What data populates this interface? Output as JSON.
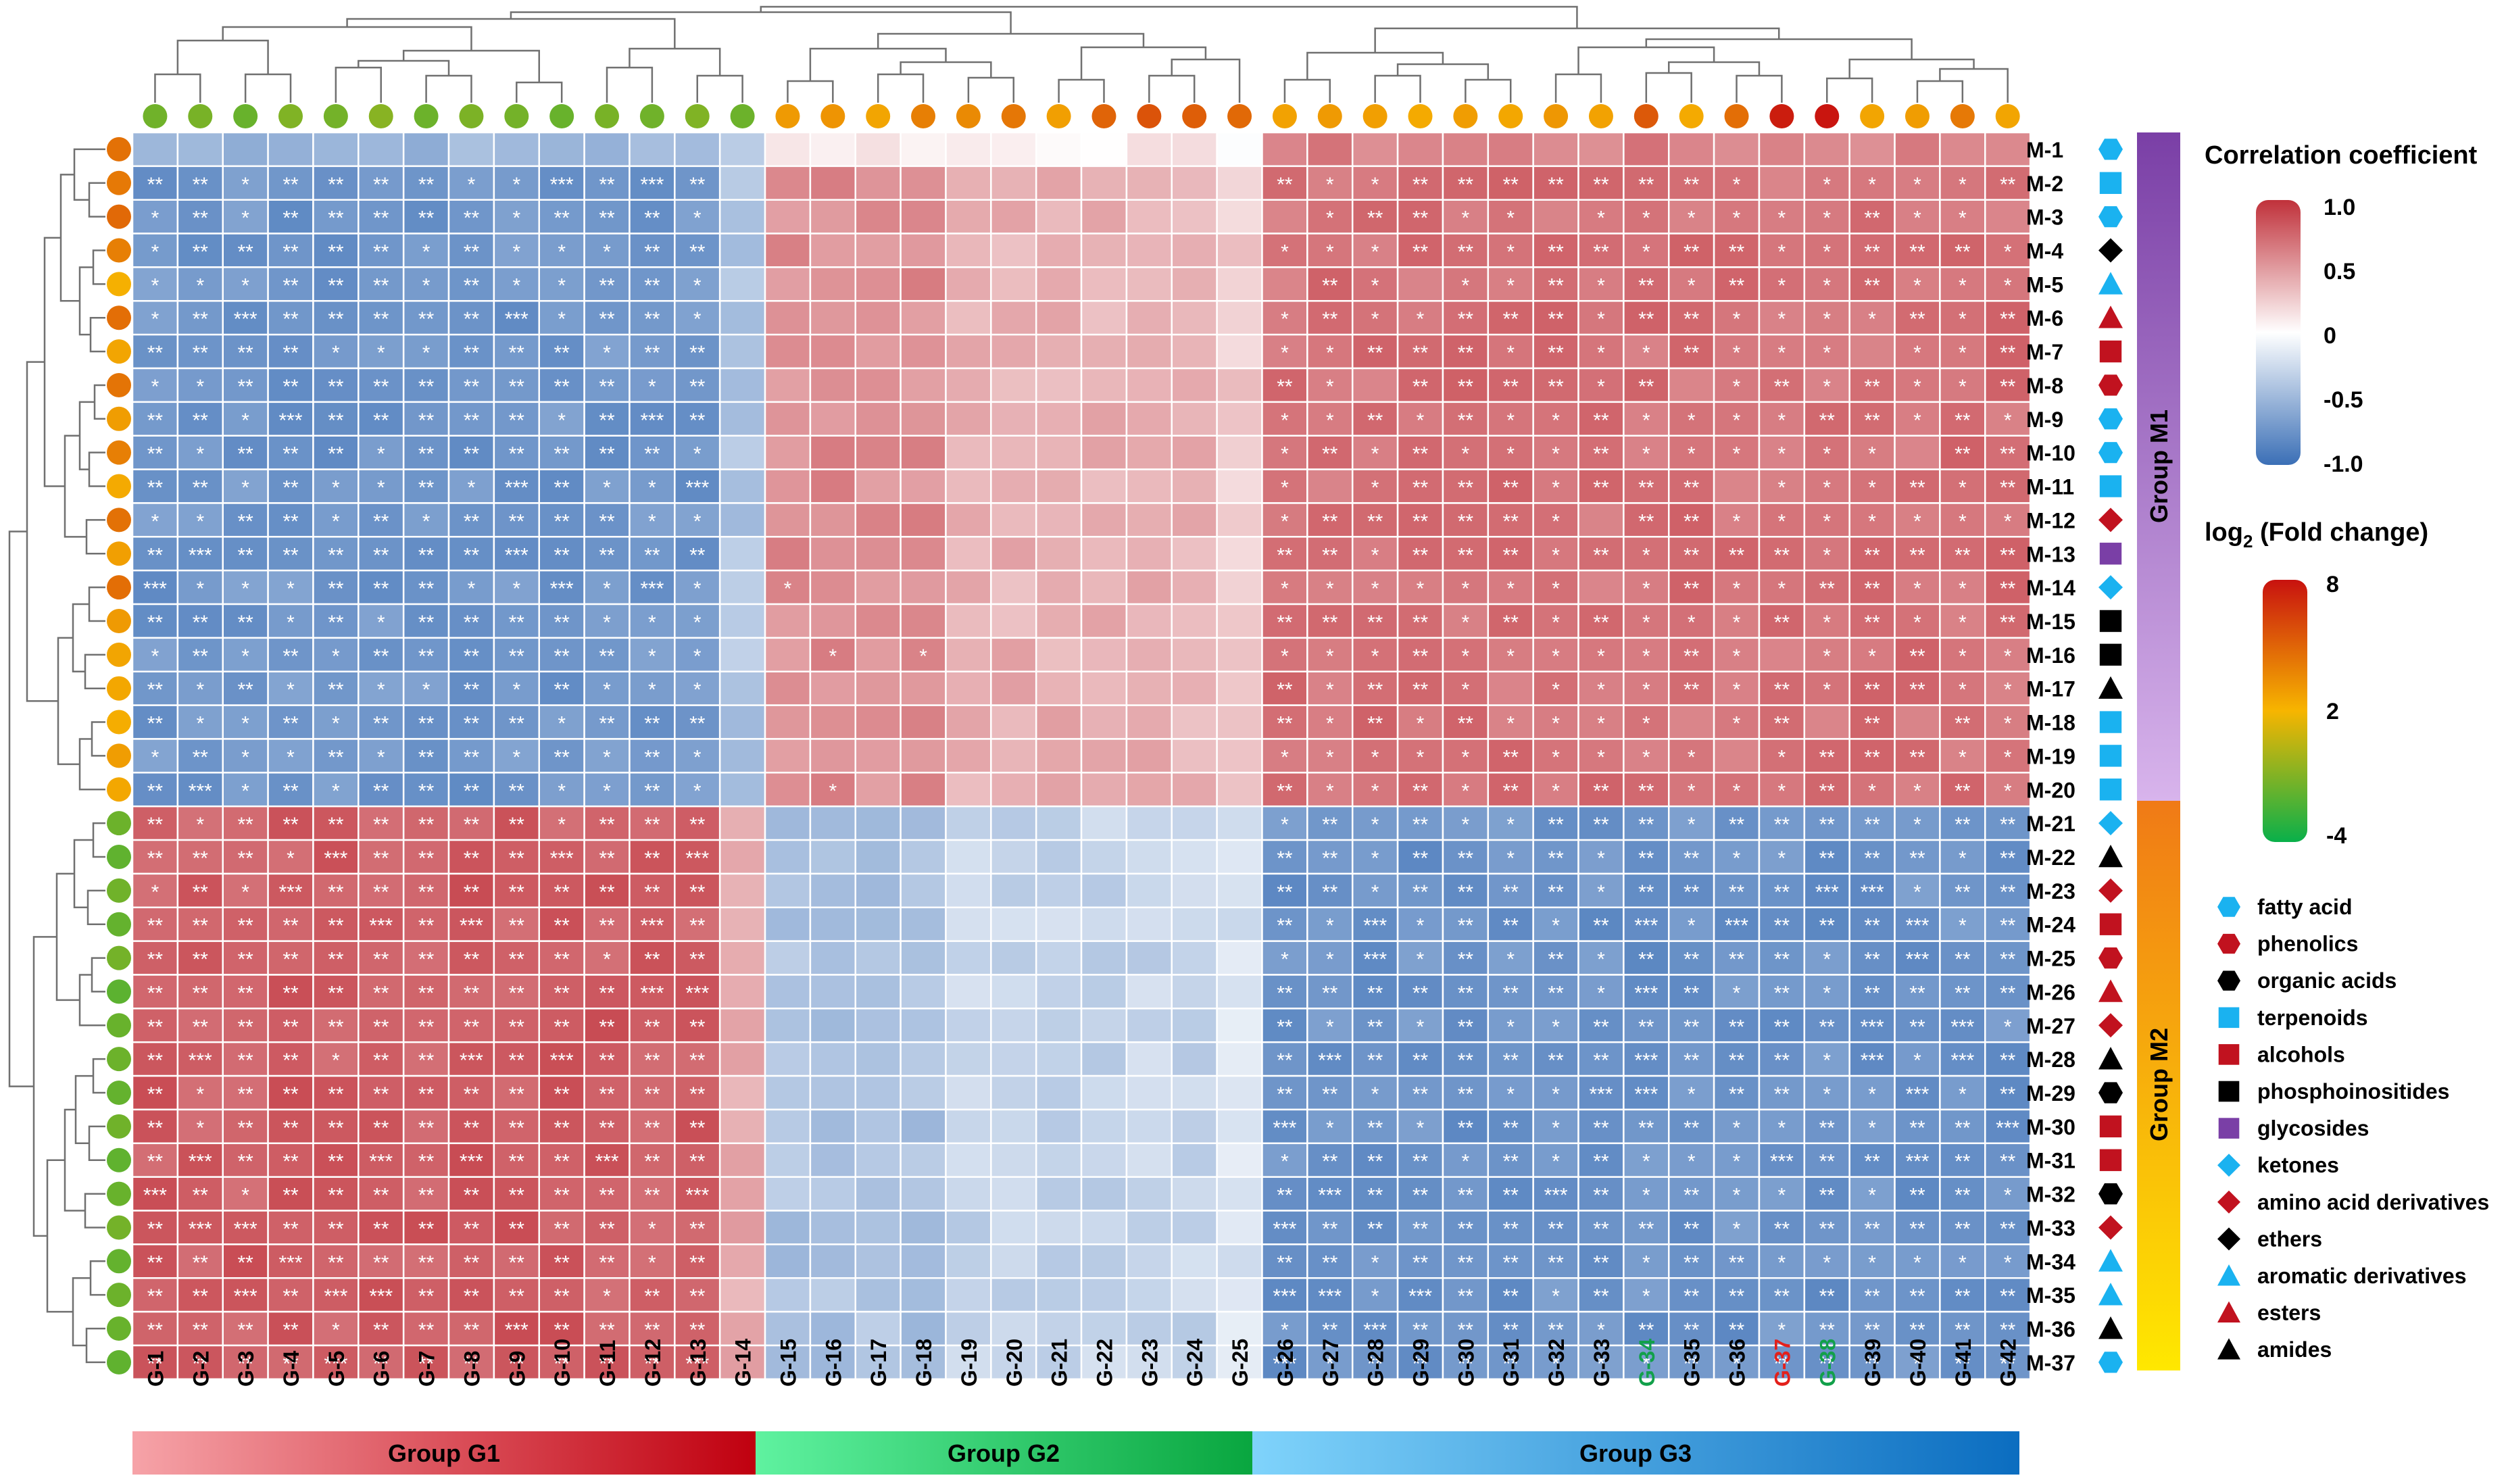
{
  "chart_data": {
    "type": "heatmap",
    "title": "",
    "xlabel": "",
    "ylabel": "",
    "columns": [
      "G-1",
      "G-2",
      "G-3",
      "G-4",
      "G-5",
      "G-6",
      "G-7",
      "G-8",
      "G-9",
      "G-10",
      "G-11",
      "G-12",
      "G-13",
      "G-14",
      "G-15",
      "G-16",
      "G-17",
      "G-18",
      "G-19",
      "G-20",
      "G-21",
      "G-22",
      "G-23",
      "G-24",
      "G-25",
      "G-26",
      "G-27",
      "G-28",
      "G-29",
      "G-30",
      "G-31",
      "G-32",
      "G-33",
      "G-34",
      "G-35",
      "G-36",
      "G-37",
      "G-38",
      "G-39",
      "G-40",
      "G-41",
      "G-42"
    ],
    "rows": [
      "M-1",
      "M-2",
      "M-3",
      "M-4",
      "M-5",
      "M-6",
      "M-7",
      "M-8",
      "M-9",
      "M-10",
      "M-11",
      "M-12",
      "M-13",
      "M-14",
      "M-15",
      "M-16",
      "M-17",
      "M-18",
      "M-19",
      "M-20",
      "M-21",
      "M-22",
      "M-23",
      "M-24",
      "M-25",
      "M-26",
      "M-27",
      "M-28",
      "M-29",
      "M-30",
      "M-31",
      "M-32",
      "M-33",
      "M-34",
      "M-35",
      "M-36",
      "M-37"
    ],
    "column_label_colors": {
      "G-34": "#12a04a",
      "G-37": "#e3201b",
      "G-38": "#12a04a"
    },
    "color_scale": {
      "min": -1.0,
      "max": 1.0,
      "low": "#3b6fb6",
      "mid": "#ffffff",
      "high": "#c0313a"
    },
    "col_group_bounds": [
      14,
      25
    ],
    "row_group_bound": 20,
    "gene_fold_change": [
      -1.4,
      -1.2,
      -1.6,
      -1.0,
      -1.3,
      -0.8,
      -1.5,
      -1.1,
      -1.3,
      -1.6,
      -1.2,
      -1.4,
      -1.0,
      -1.5,
      3.0,
      3.2,
      2.6,
      4.0,
      3.6,
      4.3,
      2.8,
      5.0,
      5.6,
      5.2,
      4.8,
      2.7,
      3.0,
      2.8,
      2.4,
      2.9,
      2.5,
      3.1,
      2.7,
      5.4,
      2.4,
      4.6,
      7.6,
      7.9,
      2.6,
      2.9,
      4.2,
      2.6
    ],
    "metabolite_fold_change": [
      4.5,
      4.2,
      4.8,
      4.0,
      2.2,
      4.6,
      2.6,
      4.4,
      2.9,
      4.0,
      2.4,
      4.5,
      2.8,
      4.6,
      3.0,
      2.6,
      2.5,
      2.3,
      2.9,
      2.5,
      -1.5,
      -1.8,
      -1.4,
      -1.7,
      -1.3,
      -1.9,
      -1.6,
      -1.5,
      -1.7,
      -1.4,
      -1.8,
      -1.6,
      -1.3,
      -1.7,
      -1.5,
      -1.6,
      -1.8
    ],
    "metabolite_classes": [
      "fatty acid",
      "terpenoids",
      "fatty acid",
      "ethers",
      "aromatic derivatives",
      "esters",
      "alcohols",
      "phenolics",
      "fatty acid",
      "fatty acid",
      "terpenoids",
      "amino acid derivatives",
      "glycosides",
      "ketones",
      "phosphoinositides",
      "phosphoinositides",
      "amides",
      "terpenoids",
      "terpenoids",
      "terpenoids",
      "ketones",
      "amides",
      "amino acid derivatives",
      "alcohols",
      "phenolics",
      "esters",
      "amino acid derivatives",
      "amides",
      "organic acids",
      "alcohols",
      "alcohols",
      "organic acids",
      "amino acid derivatives",
      "aromatic derivatives",
      "aromatic derivatives",
      "amides",
      "fatty acid"
    ],
    "significance": [
      "0000000000000000000000000020000000000002020003020022320202",
      "0202020202020200020202020000000000000000000202030202000202020202020202020202",
      "0202020203030303030302030302020000000000000000000000000000000002030302020203030303030302030302",
      "02020202030303030302030302000000000000000000000000000000020303030303020303030303020202",
      "020202030303040303030302020000000000000000000000000002020304030302020202020203020302",
      "020202030303030303030202020000000000000000000000000002030404030302020202020202030202",
      "02020203030303030302020202000000000000000000000000000203040303020202020202030403",
      "020202030303030303030202020000000000000000000000000002040403030202020303030304",
      "02020203030303030302030202000000000000000000000000000202030403030202020202030403",
      "0202020303030303030302030202000000000000000000000000000202030404030202020202030303",
      "020202030303030303030202030202000000000000000000000000020203040303020202020203030202",
      "0202030304040404030202030202000000000000000000000000000202030202030304030302030302040202",
      "020202030303030303040303030303000000000000000000000000000202020202020404040204040202040203",
      "0202020202020202020000030303030202000203030300000000000000030402030202030300000000000002",
      "02020202020202020200000303030302020002020200000000000000030402030202030300000000000202",
      "020202030303030302000002030302020200020202000000000000000304020302020303000000000202",
      "0202020303030303020000020302020200000000000000000000000003040203030303040000000002",
      "020203030303020202020000000000000000000002020202020202020203030202030302020202",
      "020203030302030202020000000000000000000002020202030303020202030302020202",
      "020203030202020302000000000000000000000002020302030303020202030202"
    ],
    "row_dot_colors": [
      "#e8841a",
      "#e8841a",
      "#e8841a",
      "#e8841a",
      "#f5b800",
      "#e8841a",
      "#f5b800",
      "#e8841a",
      "#f5b800",
      "#e8841a",
      "#f5b800",
      "#e8841a",
      "#f5b800",
      "#e8841a",
      "#f5b800",
      "#f5b800",
      "#f5b800",
      "#f5b800",
      "#f5b800",
      "#f5b800",
      "#8cc03a",
      "#8cc03a",
      "#5fb23a",
      "#8cc03a",
      "#8cc03a",
      "#5fb23a",
      "#8cc03a",
      "#5fb23a",
      "#8cc03a",
      "#5fb23a",
      "#8cc03a",
      "#5fb23a",
      "#8cc03a",
      "#8cc03a",
      "#8cc03a",
      "#5fb23a",
      "#8cc03a"
    ]
  },
  "legend": {
    "correlation_title": "Correlation coefficient",
    "correlation_ticks": [
      "1.0",
      "0.5",
      "0",
      "-0.5",
      "-1.0"
    ],
    "fold_title_prefix": "log",
    "fold_title_sub": "2",
    "fold_title_suffix": " (Fold change)",
    "fold_ticks": [
      "8",
      "2",
      "-4"
    ],
    "classes": [
      {
        "label": "fatty acid",
        "shape": "hexagon",
        "color": "#1ab2f0"
      },
      {
        "label": "phenolics",
        "shape": "hexagon",
        "color": "#c1121f"
      },
      {
        "label": "organic acids",
        "shape": "hexagon",
        "color": "#000000"
      },
      {
        "label": "terpenoids",
        "shape": "square",
        "color": "#1ab2f0"
      },
      {
        "label": "alcohols",
        "shape": "square",
        "color": "#c1121f"
      },
      {
        "label": "phosphoinositides",
        "shape": "square",
        "color": "#000000"
      },
      {
        "label": "glycosides",
        "shape": "square",
        "color": "#7a3fa6"
      },
      {
        "label": "ketones",
        "shape": "diamond",
        "color": "#1ab2f0"
      },
      {
        "label": "amino acid derivatives",
        "shape": "diamond",
        "color": "#c1121f"
      },
      {
        "label": "ethers",
        "shape": "diamond",
        "color": "#000000"
      },
      {
        "label": "aromatic derivatives",
        "shape": "triangle",
        "color": "#1ab2f0"
      },
      {
        "label": "esters",
        "shape": "triangle",
        "color": "#c1121f"
      },
      {
        "label": "amides",
        "shape": "triangle",
        "color": "#000000"
      }
    ]
  },
  "groups": {
    "columns": [
      {
        "label": "Group G1",
        "from": "#f6a3a8",
        "to": "#c0000f"
      },
      {
        "label": "Group G2",
        "from": "#5ff2a0",
        "to": "#09a63f"
      },
      {
        "label": "Group G3",
        "from": "#7fd3fb",
        "to": "#0b6dc0"
      }
    ],
    "rows": [
      {
        "label": "Group M1",
        "from": "#7a3fa6",
        "to": "#d8b4ec"
      },
      {
        "label": "Group M2",
        "from": "#f07a16",
        "to": "#ffe800"
      }
    ]
  }
}
